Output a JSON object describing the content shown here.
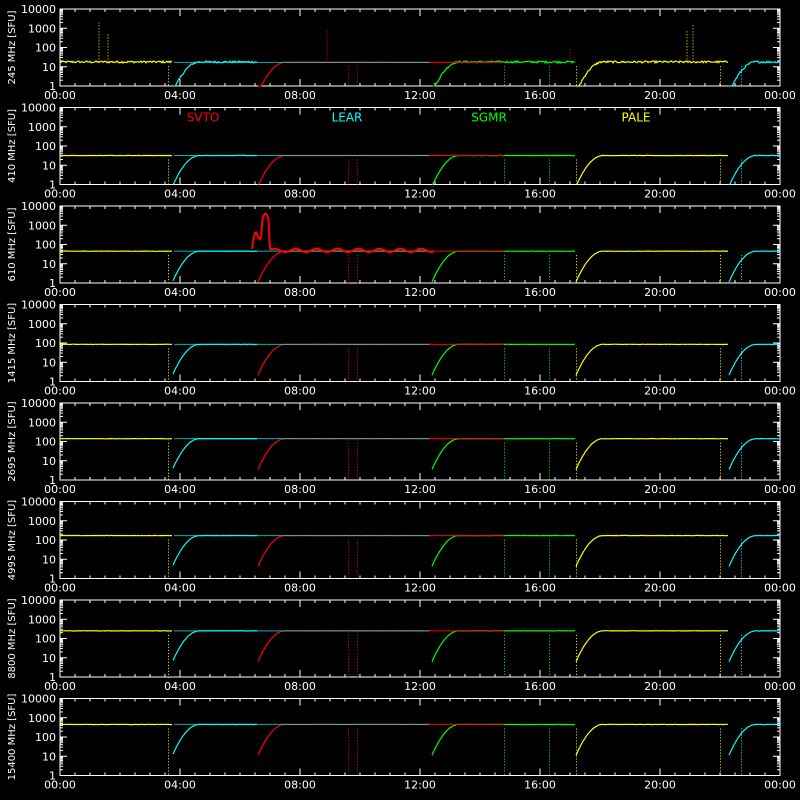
{
  "chart_data": {
    "type": "line",
    "y_scale": "log",
    "y_unit_label": "[SFU]",
    "ylim": [
      1,
      10000
    ],
    "y_ticks": [
      "1",
      "10",
      "100",
      "1000",
      "10000"
    ],
    "xlim": [
      "00:00",
      "24:00"
    ],
    "x_ticks": [
      "00:00",
      "04:00",
      "08:00",
      "12:00",
      "16:00",
      "20:00",
      "00:00"
    ],
    "grid": false,
    "legend_placement": "inside second panel, top",
    "colors": {
      "background": "#000000",
      "axes": "#ffffff",
      "SVTO": "#ff0000",
      "LEAR": "#00ffff",
      "SGMR": "#00ff00",
      "PALE": "#ffff00"
    },
    "legend": [
      {
        "name": "SVTO",
        "color": "#ff0000"
      },
      {
        "name": "LEAR",
        "color": "#00ffff"
      },
      {
        "name": "SGMR",
        "color": "#00ff00"
      },
      {
        "name": "PALE",
        "color": "#ffff00"
      }
    ],
    "station_windows": [
      {
        "name": "PALE",
        "start": 0.0,
        "end": 3.75
      },
      {
        "name": "LEAR",
        "start": 3.75,
        "end": 6.6
      },
      {
        "name": "SVTO",
        "start": 6.6,
        "end": 12.4
      },
      {
        "name": "SGMR",
        "start": 12.4,
        "end": 17.2
      },
      {
        "name": "PALE",
        "start": 17.2,
        "end": 22.3
      },
      {
        "name": "LEAR",
        "start": 22.3,
        "end": 24.0
      }
    ],
    "panels": [
      {
        "label": "245 MHz",
        "baseline": 17,
        "noisy": true
      },
      {
        "label": "410 MHz",
        "baseline": 32,
        "noisy": false
      },
      {
        "label": "610 MHz",
        "baseline": 45,
        "noisy": false,
        "event_peak": 4000
      },
      {
        "label": "1415 MHz",
        "baseline": 85,
        "noisy": false
      },
      {
        "label": "2695 MHz",
        "baseline": 140,
        "noisy": false
      },
      {
        "label": "4995 MHz",
        "baseline": 170,
        "noisy": false
      },
      {
        "label": "8800 MHz",
        "baseline": 250,
        "noisy": false
      },
      {
        "label": "15400 MHz",
        "baseline": 450,
        "noisy": false
      }
    ]
  }
}
